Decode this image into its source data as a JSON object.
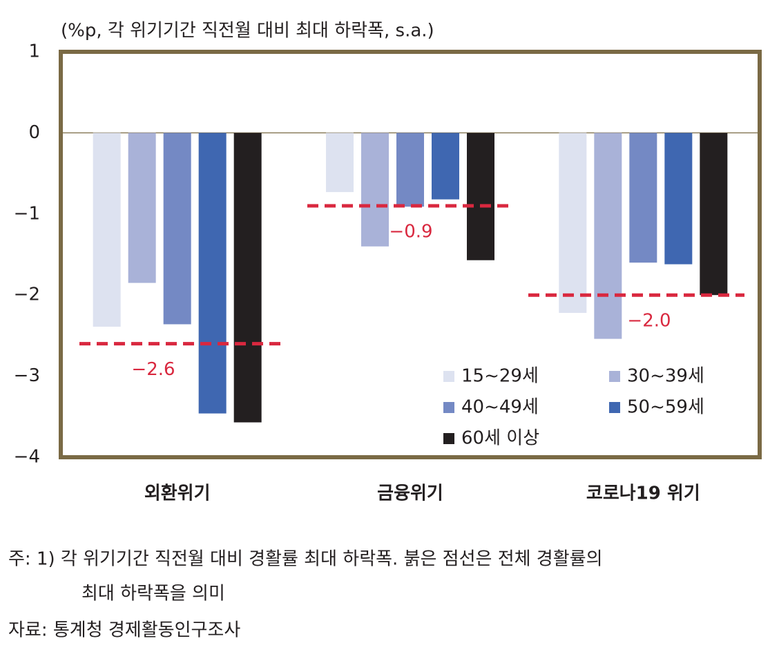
{
  "chart_data": {
    "type": "bar",
    "subtitle": "(%p, 각 위기기간 직전월 대비 최대 하락폭, s.a.)",
    "categories": [
      "외환위기",
      "금융위기",
      "코로나19 위기"
    ],
    "series": [
      {
        "name": "15~29세",
        "color": "#dde2f0",
        "values": [
          -2.39,
          -0.73,
          -2.22
        ]
      },
      {
        "name": "30~39세",
        "color": "#a9b2d8",
        "values": [
          -1.85,
          -1.4,
          -2.54
        ]
      },
      {
        "name": "40~49세",
        "color": "#7489c4",
        "values": [
          -2.36,
          -0.91,
          -1.6
        ]
      },
      {
        "name": "50~59세",
        "color": "#3f67b1",
        "values": [
          -3.46,
          -0.82,
          -1.62
        ]
      },
      {
        "name": "60세 이상",
        "color": "#231f20",
        "values": [
          -3.57,
          -1.57,
          -2.0
        ]
      }
    ],
    "reference_lines": {
      "color": "#d9283f",
      "values": [
        -2.6,
        -0.9,
        -2.0
      ],
      "value_labels": [
        "−2.6",
        "−0.9",
        "−2.0"
      ]
    },
    "ylim": [
      -4,
      1
    ],
    "yticks": [
      1,
      0,
      {
        "value": -1,
        "label": "−1"
      },
      {
        "value": -2,
        "label": "−2"
      },
      {
        "value": -3,
        "label": "−3"
      },
      {
        "value": -4,
        "label": "−4"
      }
    ],
    "grid": false,
    "legend": "lower right",
    "notes": [
      "주: 1) 각 위기기간 직전월 대비 경활률 최대 하락폭. 붉은 점선은 전체 경활률의",
      "최대 하락폭을 의미",
      "자료: 통계청 경제활동인구조사"
    ]
  }
}
